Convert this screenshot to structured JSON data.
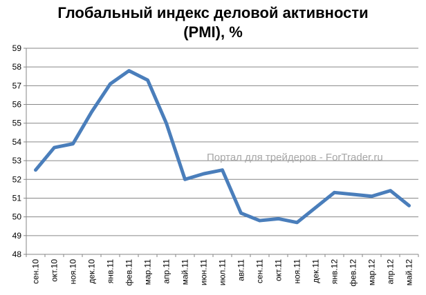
{
  "chart_data": {
    "type": "line",
    "title": "Глобальный индекс деловой активности (PMI), %",
    "title_lines": [
      "Глобальный индекс деловой активности",
      "(PMI), %"
    ],
    "xlabel": "",
    "ylabel": "",
    "ylim": [
      48,
      59
    ],
    "yticks": [
      "48",
      "49",
      "50",
      "51",
      "52",
      "53",
      "54",
      "55",
      "56",
      "57",
      "58",
      "59"
    ],
    "grid": true,
    "legend": "none",
    "categories": [
      "сен.10",
      "окт.10",
      "ноя.10",
      "дек.10",
      "янв.11",
      "фев.11",
      "мар.11",
      "апр.11",
      "май.11",
      "июн.11",
      "июл.11",
      "авг.11",
      "сен.11",
      "окт.11",
      "ноя.11",
      "дек.11",
      "янв.12",
      "фев.12",
      "мар.12",
      "апр.12",
      "май.12"
    ],
    "series": [
      {
        "values": [
          52.5,
          53.7,
          53.9,
          55.6,
          57.1,
          57.8,
          57.3,
          55.0,
          52.0,
          52.3,
          52.5,
          50.2,
          49.8,
          49.9,
          49.7,
          50.5,
          51.3,
          51.2,
          51.1,
          51.4,
          50.6
        ],
        "color": "#4a7ebb"
      }
    ],
    "annotation": "Портал для трейдеров - ForTrader.ru"
  }
}
